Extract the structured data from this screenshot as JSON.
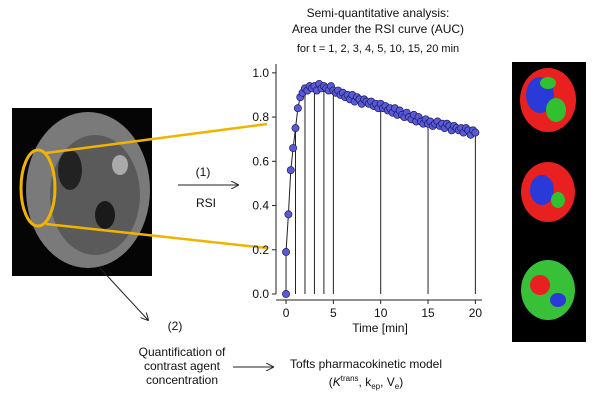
{
  "chart_data": {
    "type": "line",
    "title": [
      "Semi-quantitative analysis:",
      "Area under the RSI curve (AUC)"
    ],
    "subtitle": "for t = 1, 2, 3, 4, 5, 10, 15, 20 min",
    "xlabel": "Time [min]",
    "auc_times": [
      1,
      2,
      3,
      4,
      5,
      10,
      15,
      20
    ],
    "x": [
      0,
      0,
      0.25,
      0.5,
      0.75,
      1.0,
      1.25,
      1.5,
      1.75,
      2.0,
      2.25,
      2.5,
      2.75,
      3.0,
      3.25,
      3.5,
      3.75,
      4.0,
      4.25,
      4.5,
      4.75,
      5.0,
      5.25,
      5.5,
      5.75,
      6.0,
      6.25,
      6.5,
      6.75,
      7.0,
      7.25,
      7.5,
      7.75,
      8.0,
      8.25,
      8.5,
      8.75,
      9.0,
      9.25,
      9.5,
      9.75,
      10.0,
      10.25,
      10.5,
      10.75,
      11.0,
      11.25,
      11.5,
      11.75,
      12.0,
      12.25,
      12.5,
      12.75,
      13.0,
      13.25,
      13.5,
      13.75,
      14.0,
      14.25,
      14.5,
      14.75,
      15.0,
      15.25,
      15.5,
      15.75,
      16.0,
      16.25,
      16.5,
      16.75,
      17.0,
      17.25,
      17.5,
      17.75,
      18.0,
      18.25,
      18.5,
      18.75,
      19.0,
      19.25,
      19.5,
      19.75,
      20.0
    ],
    "values": [
      0.0,
      0.19,
      0.36,
      0.56,
      0.66,
      0.75,
      0.84,
      0.89,
      0.91,
      0.93,
      0.92,
      0.94,
      0.93,
      0.94,
      0.92,
      0.95,
      0.93,
      0.94,
      0.93,
      0.92,
      0.94,
      0.92,
      0.91,
      0.92,
      0.9,
      0.91,
      0.89,
      0.9,
      0.88,
      0.9,
      0.87,
      0.89,
      0.88,
      0.86,
      0.88,
      0.87,
      0.86,
      0.87,
      0.85,
      0.86,
      0.84,
      0.86,
      0.84,
      0.85,
      0.83,
      0.84,
      0.82,
      0.84,
      0.81,
      0.83,
      0.81,
      0.8,
      0.82,
      0.8,
      0.79,
      0.81,
      0.78,
      0.8,
      0.78,
      0.77,
      0.79,
      0.77,
      0.78,
      0.76,
      0.77,
      0.78,
      0.76,
      0.77,
      0.75,
      0.77,
      0.76,
      0.74,
      0.76,
      0.75,
      0.74,
      0.75,
      0.73,
      0.75,
      0.74,
      0.72,
      0.74,
      0.73
    ],
    "color": "#5a5ad8",
    "xlim": [
      -1.06,
      20.7
    ],
    "ylim": [
      0,
      1.04
    ],
    "xticks": [
      0,
      5,
      10,
      15,
      20
    ],
    "yticks": [
      {
        "value": 0,
        "label": "0.0"
      },
      {
        "value": 0.2,
        "label": "0.2"
      },
      {
        "value": 0.4,
        "label": "0.4"
      },
      {
        "value": 0.6,
        "label": "0.6"
      },
      {
        "value": 0.8,
        "label": "0.8"
      },
      {
        "value": 1.0,
        "label": "1.0"
      }
    ]
  },
  "diagram": {
    "step1": "(1)",
    "step1_label": "RSI",
    "step2": "(2)",
    "quantification": [
      "Quantification of",
      "contrast agent",
      "concentration"
    ],
    "model": "Tofts pharmacokinetic model",
    "params": [
      "(",
      "K",
      "trans",
      ", k",
      "ep",
      ", V",
      "e",
      ")"
    ]
  }
}
